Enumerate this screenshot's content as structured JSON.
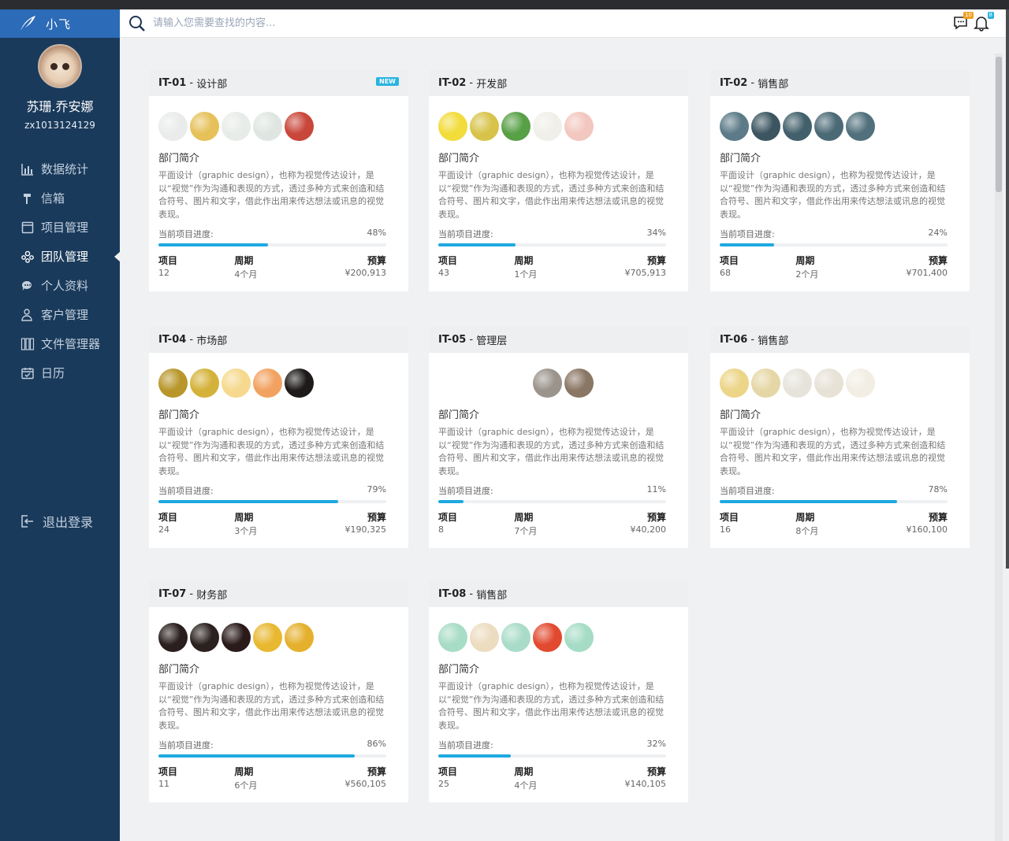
{
  "app": {
    "brand_name": "小飞",
    "user_name": "苏珊.乔安娜",
    "user_id": "zx1013124129"
  },
  "nav": {
    "items": [
      {
        "label": "数据统计",
        "icon": "bar-chart-icon"
      },
      {
        "label": "信箱",
        "icon": "mailbox-icon"
      },
      {
        "label": "项目管理",
        "icon": "project-icon"
      },
      {
        "label": "团队管理",
        "icon": "team-icon",
        "active": true
      },
      {
        "label": "个人资料",
        "icon": "chat-profile-icon"
      },
      {
        "label": "客户管理",
        "icon": "customer-icon"
      },
      {
        "label": "文件管理器",
        "icon": "file-manager-icon"
      },
      {
        "label": "日历",
        "icon": "calendar-icon"
      }
    ],
    "logout_label": "退出登录"
  },
  "header": {
    "search_placeholder": "请输入您需要查找的内容...",
    "message_badge": "10",
    "notification_badge": "8"
  },
  "labels": {
    "desc_title": "部门简介",
    "desc_text": "平面设计（graphic design），也称为视觉传达设计，是以“视觉”作为沟通和表现的方式，透过多种方式来创造和结合符号、图片和文字，借此作出用来传达想法或讯息的视觉表现。",
    "progress_label": "当前项目进度:",
    "projects_label": "项目",
    "cycle_label": "周期",
    "budget_label": "预算",
    "new_badge": "NEW"
  },
  "teams": [
    {
      "code": "IT-01",
      "dept": "设计部",
      "new": true,
      "progress": 48,
      "progress_text": "48%",
      "projects": "12",
      "cycle": "4个月",
      "budget": "¥200,913",
      "palette": [
        "#e9ecea",
        "#e6c15a",
        "#e8ece8",
        "#dfe6e2",
        "#c9463a"
      ]
    },
    {
      "code": "IT-02",
      "dept": "开发部",
      "new": false,
      "progress": 34,
      "progress_text": "34%",
      "projects": "43",
      "cycle": "1个月",
      "budget": "¥705,913",
      "palette": [
        "#f2dc3a",
        "#d8c34a",
        "#58a046",
        "#f0efe9",
        "#f2c7bf"
      ]
    },
    {
      "code": "IT-02",
      "dept": "销售部",
      "new": false,
      "progress": 24,
      "progress_text": "24%",
      "projects": "68",
      "cycle": "2个月",
      "budget": "¥701,400",
      "palette": [
        "#5c7a87",
        "#3c5560",
        "#42606b",
        "#4b6a75",
        "#51707c"
      ]
    },
    {
      "code": "IT-04",
      "dept": "市场部",
      "new": false,
      "progress": 79,
      "progress_text": "79%",
      "projects": "24",
      "cycle": "3个月",
      "budget": "¥190,325",
      "palette": [
        "#b8962a",
        "#d4b23a",
        "#f6d98e",
        "#f2a260",
        "#1e1a1a"
      ]
    },
    {
      "code": "IT-05",
      "dept": "管理层",
      "new": false,
      "progress": 11,
      "progress_text": "11%",
      "projects": "8",
      "cycle": "7个月",
      "budget": "¥40,200",
      "palette": [
        "#ffffff",
        "#ffffff",
        "#ffffff",
        "#9b948c",
        "#8a7664"
      ]
    },
    {
      "code": "IT-06",
      "dept": "销售部",
      "new": false,
      "progress": 78,
      "progress_text": "78%",
      "projects": "16",
      "cycle": "8个月",
      "budget": "¥160,100",
      "palette": [
        "#ecd587",
        "#e5d7a5",
        "#e6e4da",
        "#e7e2d6",
        "#f2eee4"
      ]
    },
    {
      "code": "IT-07",
      "dept": "财务部",
      "new": false,
      "progress": 86,
      "progress_text": "86%",
      "projects": "11",
      "cycle": "6个月",
      "budget": "¥560,105",
      "palette": [
        "#2a1e1e",
        "#2b2220",
        "#2a1a1a",
        "#e8b830",
        "#e5b02c"
      ]
    },
    {
      "code": "IT-08",
      "dept": "销售部",
      "new": false,
      "progress": 32,
      "progress_text": "32%",
      "projects": "25",
      "cycle": "4个月",
      "budget": "¥140,105",
      "palette": [
        "#a7dcc6",
        "#ecdcc0",
        "#a9dcc8",
        "#e24a30",
        "#a6dcc6"
      ]
    }
  ]
}
